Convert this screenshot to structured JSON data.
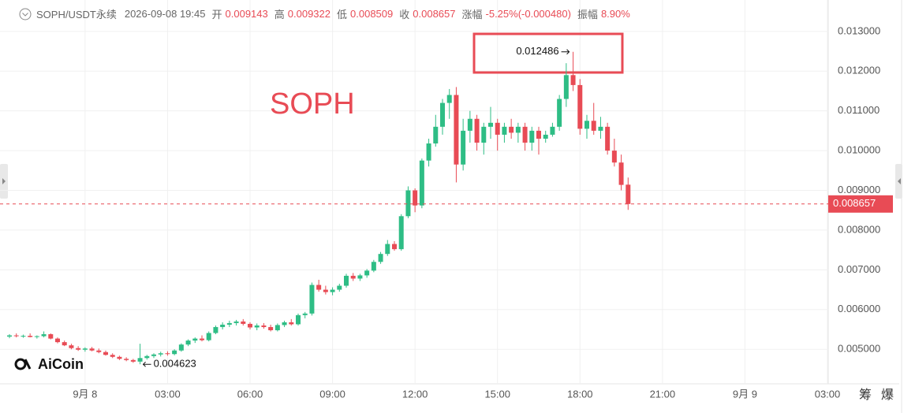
{
  "chart_data": {
    "type": "candlestick",
    "symbol": "SOPH/USDT永续",
    "time": "2026-09-08 19:45",
    "header_labels": {
      "open": "开",
      "high": "高",
      "low": "低",
      "close": "收",
      "change": "涨幅",
      "amplitude": "振幅"
    },
    "change": "-5.25%(-0.000480)",
    "amplitude": "8.90%",
    "watermark": "SOPH",
    "logo": "AiCoin",
    "side_buttons": [
      "筹",
      "爆"
    ],
    "up_color": "#2ebd85",
    "down_color": "#e84b55",
    "ylim": [
      0.00427,
      0.01379
    ],
    "yticks": [
      {
        "value": 0.005,
        "label": "0.005000"
      },
      {
        "value": 0.006,
        "label": "0.006000"
      },
      {
        "value": 0.007,
        "label": "0.007000"
      },
      {
        "value": 0.008,
        "label": "0.008000"
      },
      {
        "value": 0.009,
        "label": "0.009000"
      },
      {
        "value": 0.01,
        "label": "0.010000"
      },
      {
        "value": 0.011,
        "label": "0.011000"
      },
      {
        "value": 0.012,
        "label": "0.012000"
      },
      {
        "value": 0.013,
        "label": "0.013000"
      }
    ],
    "grid": true,
    "categories": [
      null,
      null,
      null,
      null,
      null,
      null,
      null,
      null,
      null,
      null,
      null,
      "9月 8",
      null,
      null,
      null,
      null,
      null,
      null,
      null,
      null,
      null,
      null,
      null,
      "03:00",
      null,
      null,
      null,
      null,
      null,
      null,
      null,
      null,
      null,
      null,
      null,
      "06:00",
      null,
      null,
      null,
      null,
      null,
      null,
      null,
      null,
      null,
      null,
      null,
      "09:00",
      null,
      null,
      null,
      null,
      null,
      null,
      null,
      null,
      null,
      null,
      null,
      "12:00",
      null,
      null,
      null,
      null,
      null,
      null,
      null,
      null,
      null,
      null,
      null,
      "15:00",
      null,
      null,
      null,
      null,
      null,
      null,
      null,
      null,
      null,
      null,
      null,
      "18:00",
      null,
      null,
      null,
      null,
      null,
      null,
      null,
      null,
      null,
      null,
      null,
      "21:00",
      null,
      null,
      null,
      null,
      null,
      null,
      null,
      null,
      null,
      null,
      null,
      "9月 9",
      null,
      null,
      null,
      null,
      null,
      null,
      null,
      null,
      null,
      null,
      null,
      "03:00"
    ],
    "open": [
      0.00532,
      0.00535,
      0.00533,
      0.00534,
      0.00531,
      0.00533,
      0.00538,
      0.00527,
      0.00518,
      0.0051,
      0.00503,
      0.00499,
      0.00502,
      0.00497,
      0.00493,
      0.00486,
      0.00481,
      0.00476,
      0.00473,
      0.00469,
      0.00478,
      0.00483,
      0.00487,
      0.0049,
      0.00488,
      0.00497,
      0.00512,
      0.00522,
      0.00527,
      0.00523,
      0.00541,
      0.00556,
      0.00562,
      0.00566,
      0.0057,
      0.00564,
      0.00555,
      0.0056,
      0.00556,
      0.00548,
      0.00561,
      0.00568,
      0.00563,
      0.00586,
      0.0059,
      0.00662,
      0.0065,
      0.00644,
      0.0065,
      0.0066,
      0.00685,
      0.00678,
      0.00686,
      0.00698,
      0.0072,
      0.0074,
      0.00765,
      0.00752,
      0.00835,
      0.009,
      0.00862,
      0.00975,
      0.01018,
      0.0106,
      0.0112,
      0.0114,
      0.00965,
      0.0105,
      0.0108,
      0.0102,
      0.0106,
      0.0107,
      0.0104,
      0.0106,
      0.01045,
      0.0106,
      0.0102,
      0.0105,
      0.0103,
      0.0104,
      0.0106,
      0.0113,
      0.0119,
      0.01165,
      0.01055,
      0.01075,
      0.0105,
      0.0106,
      0.01,
      0.0097,
      0.009143,
      null,
      null,
      null,
      null,
      null,
      null,
      null,
      null,
      null,
      null,
      null,
      null,
      null,
      null,
      null,
      null,
      null,
      null,
      null,
      null,
      null,
      null,
      null,
      null,
      null,
      null,
      null,
      null,
      null
    ],
    "high": [
      0.00538,
      0.0054,
      0.00537,
      0.0054,
      0.00535,
      0.00545,
      0.0054,
      0.0053,
      0.00522,
      0.00514,
      0.00508,
      0.00505,
      0.00506,
      0.00502,
      0.00497,
      0.0049,
      0.00484,
      0.0048,
      0.00476,
      0.00514,
      0.00486,
      0.0049,
      0.00494,
      0.00495,
      0.005,
      0.00515,
      0.00525,
      0.0053,
      0.00535,
      0.00545,
      0.0056,
      0.00568,
      0.00572,
      0.00574,
      0.00576,
      0.00568,
      0.00565,
      0.00566,
      0.00562,
      0.00565,
      0.00572,
      0.00576,
      0.0059,
      0.00594,
      0.00668,
      0.00675,
      0.0066,
      0.00656,
      0.00665,
      0.0069,
      0.00692,
      0.0069,
      0.00702,
      0.00725,
      0.00745,
      0.00775,
      0.00772,
      0.0084,
      0.0091,
      0.00905,
      0.0098,
      0.0103,
      0.0109,
      0.0113,
      0.01155,
      0.0116,
      0.0108,
      0.011,
      0.0109,
      0.0107,
      0.0111,
      0.0108,
      0.0107,
      0.0108,
      0.0107,
      0.0107,
      0.0106,
      0.0106,
      0.0105,
      0.0107,
      0.0114,
      0.0122,
      0.012486,
      0.0118,
      0.0109,
      0.0112,
      0.01085,
      0.0107,
      0.0103,
      0.0099,
      0.009322,
      null,
      null,
      null,
      null,
      null,
      null,
      null,
      null,
      null,
      null,
      null,
      null,
      null,
      null,
      null,
      null,
      null,
      null,
      null,
      null,
      null,
      null,
      null,
      null,
      null,
      null,
      null,
      null,
      null
    ],
    "low": [
      0.00528,
      0.0053,
      0.00529,
      0.0053,
      0.00527,
      0.0053,
      0.00525,
      0.00515,
      0.00508,
      0.005,
      0.00496,
      0.00494,
      0.00495,
      0.0049,
      0.00484,
      0.00478,
      0.00473,
      0.0047,
      0.00466,
      0.004623,
      0.00474,
      0.00478,
      0.00482,
      0.00484,
      0.00485,
      0.00494,
      0.00508,
      0.00516,
      0.0052,
      0.0052,
      0.00538,
      0.0055,
      0.00556,
      0.0056,
      0.0056,
      0.0055,
      0.00548,
      0.00552,
      0.00545,
      0.00545,
      0.00556,
      0.0056,
      0.0056,
      0.00578,
      0.00585,
      0.00645,
      0.00638,
      0.00636,
      0.00645,
      0.00655,
      0.00672,
      0.00672,
      0.0068,
      0.00694,
      0.00715,
      0.00735,
      0.00748,
      0.00748,
      0.0083,
      0.00845,
      0.00855,
      0.0096,
      0.0101,
      0.0104,
      0.0108,
      0.0092,
      0.0095,
      0.0102,
      0.01,
      0.0099,
      0.0103,
      0.01,
      0.0102,
      0.0103,
      0.0102,
      0.01,
      0.01,
      0.0099,
      0.0102,
      0.01035,
      0.0105,
      0.0111,
      0.0115,
      0.0104,
      0.0103,
      0.0104,
      0.0103,
      0.0099,
      0.0096,
      0.009,
      0.008509,
      null,
      null,
      null,
      null,
      null,
      null,
      null,
      null,
      null,
      null,
      null,
      null,
      null,
      null,
      null,
      null,
      null,
      null,
      null,
      null,
      null,
      null,
      null,
      null,
      null,
      null,
      null,
      null,
      null
    ],
    "close": [
      0.00535,
      0.00533,
      0.00534,
      0.00531,
      0.00533,
      0.00538,
      0.00527,
      0.00518,
      0.0051,
      0.00503,
      0.00499,
      0.00502,
      0.00497,
      0.00493,
      0.00486,
      0.00481,
      0.00476,
      0.00473,
      0.00469,
      0.00478,
      0.00483,
      0.00487,
      0.0049,
      0.00488,
      0.00497,
      0.00512,
      0.00522,
      0.00527,
      0.00523,
      0.00541,
      0.00556,
      0.00562,
      0.00566,
      0.0057,
      0.00564,
      0.00555,
      0.0056,
      0.00556,
      0.00548,
      0.00561,
      0.00568,
      0.00563,
      0.00586,
      0.0059,
      0.00662,
      0.0065,
      0.00644,
      0.0065,
      0.0066,
      0.00685,
      0.00678,
      0.00686,
      0.00698,
      0.0072,
      0.0074,
      0.00765,
      0.00752,
      0.00835,
      0.009,
      0.00862,
      0.00975,
      0.01018,
      0.0106,
      0.0112,
      0.0114,
      0.00965,
      0.0105,
      0.0108,
      0.0102,
      0.0106,
      0.0107,
      0.0104,
      0.0106,
      0.01045,
      0.0106,
      0.0102,
      0.0105,
      0.0103,
      0.0104,
      0.0106,
      0.0113,
      0.0119,
      0.01165,
      0.01055,
      0.01075,
      0.0105,
      0.0106,
      0.01,
      0.0097,
      0.009137,
      0.008657,
      null,
      null,
      null,
      null,
      null,
      null,
      null,
      null,
      null,
      null,
      null,
      null,
      null,
      null,
      null,
      null,
      null,
      null,
      null,
      null,
      null,
      null,
      null,
      null,
      null,
      null,
      null,
      null,
      null
    ]
  }
}
